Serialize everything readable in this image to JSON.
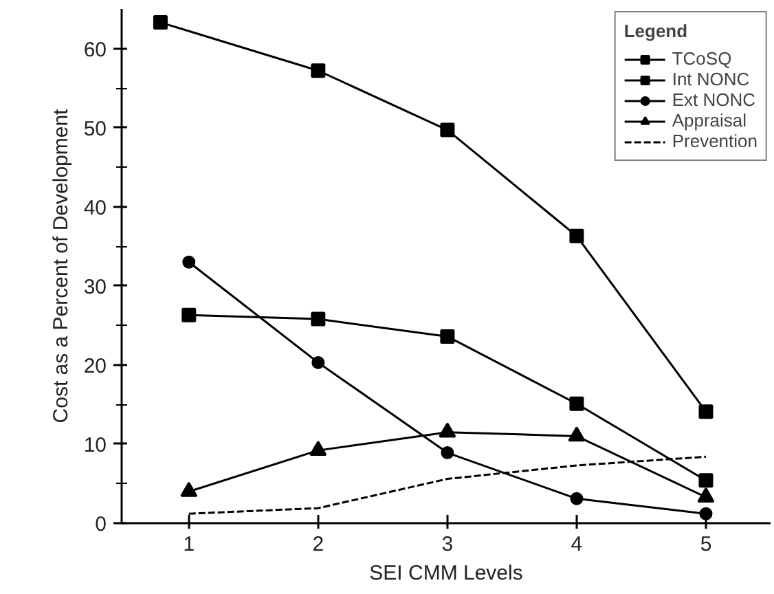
{
  "chart_data": {
    "type": "line",
    "xlabel": "SEI CMM Levels",
    "ylabel": "Cost as a Percent of Development",
    "legend_title": "Legend",
    "legend": "top right",
    "grid": false,
    "xlim": [
      0.48,
      5.5
    ],
    "xticks": [
      1,
      2,
      3,
      4,
      5
    ],
    "ylim": [
      0,
      65
    ],
    "yticks": [
      0,
      10,
      20,
      30,
      40,
      50,
      60
    ],
    "series": [
      {
        "name": "TCoSQ",
        "color": "#000000",
        "marker": "square",
        "line_style": "solid",
        "x": [
          0.78,
          2,
          3,
          4,
          5
        ],
        "values": [
          63.3,
          57.2,
          49.7,
          36.3,
          14.1
        ]
      },
      {
        "name": "Int NONC",
        "color": "#000000",
        "marker": "square",
        "line_style": "solid",
        "x": [
          1,
          2,
          3,
          4,
          5
        ],
        "values": [
          26.3,
          25.8,
          23.6,
          15.1,
          5.4
        ]
      },
      {
        "name": "Ext NONC",
        "color": "#000000",
        "marker": "circle",
        "line_style": "solid",
        "x": [
          1,
          2,
          3,
          4,
          5
        ],
        "values": [
          33.0,
          20.3,
          8.9,
          3.1,
          1.2
        ]
      },
      {
        "name": "Appraisal",
        "color": "#000000",
        "marker": "triangle",
        "line_style": "solid",
        "x": [
          1,
          2,
          3,
          4,
          5
        ],
        "values": [
          4.0,
          9.2,
          11.5,
          11.0,
          3.3
        ]
      },
      {
        "name": "Prevention",
        "color": "#000000",
        "marker": "none",
        "line_style": "dashed",
        "x": [
          1,
          2,
          3,
          4,
          5
        ],
        "values": [
          1.2,
          1.9,
          5.6,
          7.3,
          8.4
        ]
      }
    ]
  }
}
